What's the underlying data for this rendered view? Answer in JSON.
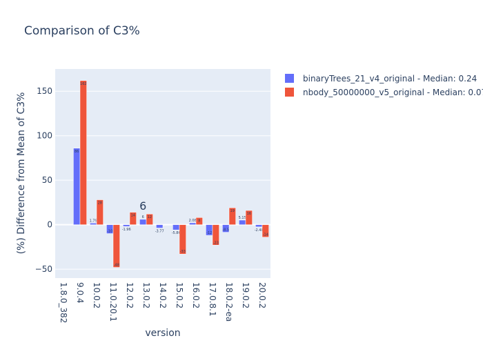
{
  "chart_data": {
    "type": "bar",
    "title": "Comparison of C3%",
    "xlabel": "version",
    "ylabel": "(%) Difference from Mean of C3%",
    "ylim": [
      -60,
      175
    ],
    "yticks": [
      -50,
      0,
      50,
      100,
      150
    ],
    "grid": true,
    "legend_position": "top-right",
    "categories": [
      "1.8.0_382",
      "9.0.4",
      "10.0.2",
      "11.0.20.1",
      "12.0.2",
      "13.0.2",
      "14.0.2",
      "15.0.2",
      "16.0.2",
      "17.0.8.1",
      "18.0.2-ea",
      "19.0.2",
      "20.0.2"
    ],
    "series": [
      {
        "name": "binaryTrees_21_v4_original - Median: 0.24",
        "color": "#636efa",
        "values": [
          0,
          86,
          1.79,
          -10,
          -1.96,
          6,
          -3.77,
          -5.86,
          2.08,
          -12,
          -8.5,
          5.15,
          -2.48
        ],
        "labels": [
          "",
          "86",
          "1.79",
          "-10",
          "-1.96",
          "6",
          "-3.77",
          "-5.86",
          "2.08",
          "-12",
          "-8.5",
          "5.15",
          "-2.48"
        ]
      },
      {
        "name": "nbody_50000000_v5_original - Median: 0.07",
        "color": "#ef553b",
        "values": [
          0,
          162,
          28,
          -48,
          14,
          12,
          0,
          -33,
          8,
          -23,
          19,
          16,
          -14
        ],
        "labels": [
          "",
          "162",
          "28",
          "-48",
          "14",
          "12",
          "",
          "-33",
          "8",
          "-23",
          "19",
          "16",
          "-14"
        ]
      }
    ],
    "annotations": [
      {
        "text": "6",
        "category": "13.0.2",
        "y": 6
      }
    ]
  }
}
